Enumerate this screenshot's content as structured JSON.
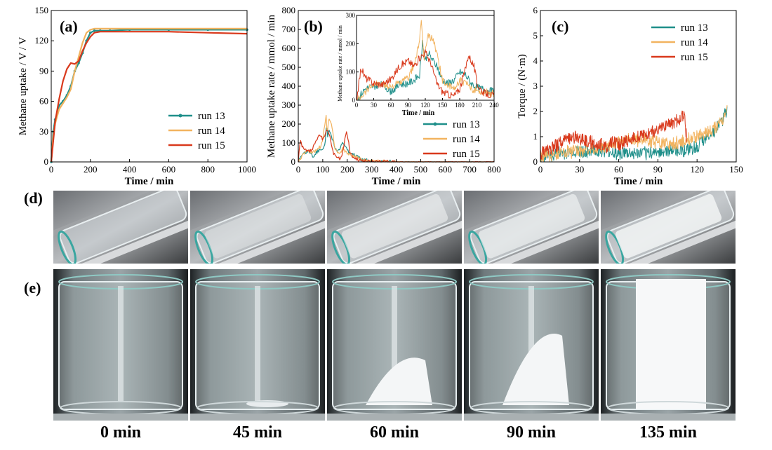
{
  "chart_data": [
    {
      "panel": "(a)",
      "type": "line",
      "xlabel": "Time / min",
      "ylabel": "Methane uptake / V / V",
      "xlim": [
        0,
        1000
      ],
      "ylim": [
        0,
        150
      ],
      "xticks": [
        0,
        200,
        400,
        600,
        800,
        1000
      ],
      "yticks": [
        0,
        30,
        60,
        90,
        120,
        150
      ],
      "legend": "bottom-right",
      "series": [
        {
          "name": "run 13",
          "color": "#1f8f8a",
          "marker": "dot",
          "x": [
            0,
            10,
            20,
            40,
            60,
            80,
            100,
            120,
            140,
            160,
            180,
            200,
            220,
            250,
            300,
            400,
            600,
            800,
            1000
          ],
          "y": [
            0,
            30,
            42,
            56,
            60,
            66,
            75,
            90,
            98,
            108,
            120,
            128,
            130,
            130,
            130,
            131,
            131,
            131,
            131
          ]
        },
        {
          "name": "run 14",
          "color": "#f2b35f",
          "marker": "line",
          "x": [
            0,
            10,
            20,
            40,
            60,
            80,
            100,
            120,
            140,
            160,
            180,
            200,
            220,
            250,
            300,
            400,
            600,
            800,
            1000
          ],
          "y": [
            0,
            25,
            38,
            52,
            58,
            64,
            72,
            90,
            104,
            118,
            128,
            131,
            132,
            132,
            132,
            132,
            132,
            132,
            132
          ]
        },
        {
          "name": "run 15",
          "color": "#d9391c",
          "marker": "line",
          "x": [
            0,
            10,
            20,
            40,
            60,
            80,
            100,
            120,
            140,
            160,
            180,
            200,
            220,
            250,
            300,
            400,
            600,
            800,
            1000
          ],
          "y": [
            0,
            20,
            40,
            62,
            80,
            92,
            98,
            97,
            100,
            110,
            118,
            124,
            128,
            129,
            129,
            129,
            129,
            128,
            127
          ]
        }
      ]
    },
    {
      "panel": "(b)",
      "type": "line",
      "xlabel": "Time / min",
      "ylabel": "Methane uptake rate / mmol / min",
      "xlim": [
        0,
        800
      ],
      "ylim": [
        0,
        800
      ],
      "xticks": [
        0,
        100,
        200,
        300,
        400,
        500,
        600,
        700,
        800
      ],
      "yticks": [
        0,
        100,
        200,
        300,
        400,
        500,
        600,
        700,
        800
      ],
      "legend": "bottom-right",
      "series": [
        {
          "name": "run 13",
          "color": "#1f8f8a",
          "marker": "dot",
          "x": [
            0,
            15,
            30,
            45,
            60,
            75,
            90,
            100,
            110,
            115,
            120,
            125,
            130,
            140,
            150,
            160,
            170,
            180,
            190,
            200,
            210,
            220,
            240,
            260,
            300,
            400,
            500,
            600,
            700,
            800
          ],
          "y": [
            0,
            40,
            50,
            55,
            30,
            55,
            60,
            70,
            90,
            200,
            140,
            170,
            150,
            120,
            70,
            60,
            70,
            100,
            90,
            60,
            45,
            40,
            30,
            10,
            2,
            0,
            0,
            0,
            0,
            0
          ]
        },
        {
          "name": "run 14",
          "color": "#f2b35f",
          "marker": "line",
          "x": [
            0,
            15,
            30,
            45,
            60,
            75,
            90,
            100,
            110,
            113,
            118,
            125,
            135,
            145,
            150,
            160,
            170,
            180,
            190,
            200,
            220,
            240,
            260,
            300,
            400,
            500,
            600,
            700,
            800
          ],
          "y": [
            0,
            30,
            60,
            55,
            50,
            60,
            80,
            120,
            210,
            270,
            150,
            230,
            210,
            120,
            70,
            50,
            40,
            70,
            60,
            40,
            30,
            25,
            10,
            2,
            0,
            0,
            0,
            0,
            0
          ]
        },
        {
          "name": "run 15",
          "color": "#d9391c",
          "marker": "line",
          "x": [
            0,
            8,
            15,
            30,
            45,
            60,
            75,
            90,
            100,
            110,
            120,
            130,
            140,
            150,
            160,
            170,
            180,
            190,
            195,
            200,
            205,
            210,
            220,
            230,
            240,
            260,
            300,
            400,
            500,
            600,
            700,
            800
          ],
          "y": [
            0,
            115,
            80,
            60,
            55,
            75,
            120,
            140,
            120,
            150,
            170,
            130,
            60,
            30,
            20,
            15,
            40,
            110,
            160,
            140,
            120,
            60,
            30,
            20,
            15,
            5,
            1,
            0,
            0,
            0,
            0,
            0
          ]
        }
      ],
      "inset": {
        "xlabel": "Time / min",
        "ylabel": "Methane uptake rate / mmol / min",
        "xlim": [
          0,
          240
        ],
        "ylim": [
          0,
          300
        ],
        "xticks": [
          0,
          30,
          60,
          90,
          120,
          150,
          180,
          210,
          240
        ],
        "yticks": [
          0,
          100,
          200,
          300
        ]
      }
    },
    {
      "panel": "(c)",
      "type": "line",
      "xlabel": "Time / min",
      "ylabel": "Torque / (N·m)",
      "xlim": [
        0,
        150
      ],
      "ylim": [
        0,
        6
      ],
      "xticks": [
        0,
        30,
        60,
        90,
        120,
        150
      ],
      "yticks": [
        0,
        1,
        2,
        3,
        4,
        5,
        6
      ],
      "legend": "top-right",
      "series": [
        {
          "name": "run 13",
          "color": "#1f8f8a",
          "marker": "line",
          "x": [
            0,
            10,
            20,
            30,
            40,
            50,
            60,
            70,
            80,
            90,
            100,
            110,
            120,
            125,
            130,
            135,
            140,
            143
          ],
          "y": [
            0.2,
            0.3,
            0.35,
            0.4,
            0.45,
            0.4,
            0.35,
            0.3,
            0.35,
            0.4,
            0.45,
            0.45,
            0.6,
            0.9,
            1.1,
            1.3,
            1.7,
            2.0
          ]
        },
        {
          "name": "run 14",
          "color": "#f2b35f",
          "marker": "line",
          "x": [
            0,
            10,
            20,
            30,
            40,
            50,
            60,
            70,
            80,
            90,
            100,
            110,
            120,
            130,
            140,
            143
          ],
          "y": [
            0.2,
            0.3,
            0.4,
            0.45,
            0.5,
            0.6,
            0.8,
            0.9,
            0.85,
            0.75,
            0.7,
            0.8,
            1.0,
            1.2,
            1.6,
            2.0
          ]
        },
        {
          "name": "run 15",
          "color": "#d9391c",
          "marker": "line",
          "x": [
            0,
            10,
            20,
            28,
            35,
            45,
            52,
            55,
            60,
            70,
            80,
            90,
            100,
            108,
            110,
            112
          ],
          "y": [
            0.3,
            0.6,
            0.9,
            1.0,
            0.8,
            0.7,
            0.6,
            0.8,
            0.7,
            0.9,
            1.1,
            1.3,
            1.5,
            1.8,
            1.9,
            1.0
          ]
        }
      ]
    }
  ],
  "panel_labels": {
    "d": "(d)",
    "e": "(e)"
  },
  "time_labels": [
    "0 min",
    "45 min",
    "60 min",
    "90 min",
    "135 min"
  ],
  "photo_hydrate_levels": [
    0,
    0.05,
    0.42,
    0.62,
    1.0
  ]
}
